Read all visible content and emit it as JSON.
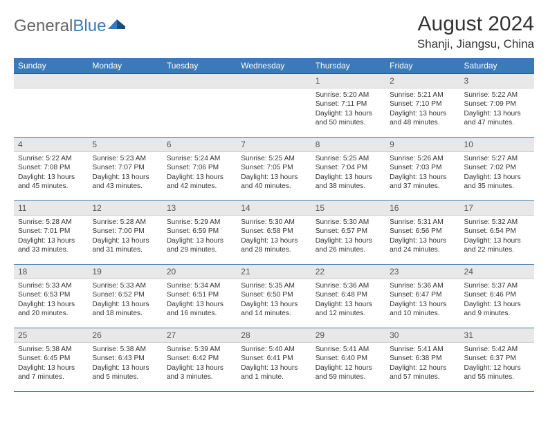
{
  "brand": {
    "part1": "General",
    "part2": "Blue"
  },
  "title": "August 2024",
  "location": "Shanji, Jiangsu, China",
  "colors": {
    "header_bg": "#3a7ab8",
    "header_text": "#ffffff",
    "daynum_bg": "#e8e8e8",
    "border": "#3a7ab8",
    "body_text": "#333333",
    "background": "#ffffff"
  },
  "typography": {
    "title_fontsize": 30,
    "location_fontsize": 17,
    "weekday_fontsize": 12,
    "daynum_fontsize": 12,
    "cell_fontsize": 10.2
  },
  "weekdays": [
    "Sunday",
    "Monday",
    "Tuesday",
    "Wednesday",
    "Thursday",
    "Friday",
    "Saturday"
  ],
  "weeks": [
    [
      null,
      null,
      null,
      null,
      {
        "d": "1",
        "sr": "5:20 AM",
        "ss": "7:11 PM",
        "dl": "13 hours and 50 minutes."
      },
      {
        "d": "2",
        "sr": "5:21 AM",
        "ss": "7:10 PM",
        "dl": "13 hours and 48 minutes."
      },
      {
        "d": "3",
        "sr": "5:22 AM",
        "ss": "7:09 PM",
        "dl": "13 hours and 47 minutes."
      }
    ],
    [
      {
        "d": "4",
        "sr": "5:22 AM",
        "ss": "7:08 PM",
        "dl": "13 hours and 45 minutes."
      },
      {
        "d": "5",
        "sr": "5:23 AM",
        "ss": "7:07 PM",
        "dl": "13 hours and 43 minutes."
      },
      {
        "d": "6",
        "sr": "5:24 AM",
        "ss": "7:06 PM",
        "dl": "13 hours and 42 minutes."
      },
      {
        "d": "7",
        "sr": "5:25 AM",
        "ss": "7:05 PM",
        "dl": "13 hours and 40 minutes."
      },
      {
        "d": "8",
        "sr": "5:25 AM",
        "ss": "7:04 PM",
        "dl": "13 hours and 38 minutes."
      },
      {
        "d": "9",
        "sr": "5:26 AM",
        "ss": "7:03 PM",
        "dl": "13 hours and 37 minutes."
      },
      {
        "d": "10",
        "sr": "5:27 AM",
        "ss": "7:02 PM",
        "dl": "13 hours and 35 minutes."
      }
    ],
    [
      {
        "d": "11",
        "sr": "5:28 AM",
        "ss": "7:01 PM",
        "dl": "13 hours and 33 minutes."
      },
      {
        "d": "12",
        "sr": "5:28 AM",
        "ss": "7:00 PM",
        "dl": "13 hours and 31 minutes."
      },
      {
        "d": "13",
        "sr": "5:29 AM",
        "ss": "6:59 PM",
        "dl": "13 hours and 29 minutes."
      },
      {
        "d": "14",
        "sr": "5:30 AM",
        "ss": "6:58 PM",
        "dl": "13 hours and 28 minutes."
      },
      {
        "d": "15",
        "sr": "5:30 AM",
        "ss": "6:57 PM",
        "dl": "13 hours and 26 minutes."
      },
      {
        "d": "16",
        "sr": "5:31 AM",
        "ss": "6:56 PM",
        "dl": "13 hours and 24 minutes."
      },
      {
        "d": "17",
        "sr": "5:32 AM",
        "ss": "6:54 PM",
        "dl": "13 hours and 22 minutes."
      }
    ],
    [
      {
        "d": "18",
        "sr": "5:33 AM",
        "ss": "6:53 PM",
        "dl": "13 hours and 20 minutes."
      },
      {
        "d": "19",
        "sr": "5:33 AM",
        "ss": "6:52 PM",
        "dl": "13 hours and 18 minutes."
      },
      {
        "d": "20",
        "sr": "5:34 AM",
        "ss": "6:51 PM",
        "dl": "13 hours and 16 minutes."
      },
      {
        "d": "21",
        "sr": "5:35 AM",
        "ss": "6:50 PM",
        "dl": "13 hours and 14 minutes."
      },
      {
        "d": "22",
        "sr": "5:36 AM",
        "ss": "6:48 PM",
        "dl": "13 hours and 12 minutes."
      },
      {
        "d": "23",
        "sr": "5:36 AM",
        "ss": "6:47 PM",
        "dl": "13 hours and 10 minutes."
      },
      {
        "d": "24",
        "sr": "5:37 AM",
        "ss": "6:46 PM",
        "dl": "13 hours and 9 minutes."
      }
    ],
    [
      {
        "d": "25",
        "sr": "5:38 AM",
        "ss": "6:45 PM",
        "dl": "13 hours and 7 minutes."
      },
      {
        "d": "26",
        "sr": "5:38 AM",
        "ss": "6:43 PM",
        "dl": "13 hours and 5 minutes."
      },
      {
        "d": "27",
        "sr": "5:39 AM",
        "ss": "6:42 PM",
        "dl": "13 hours and 3 minutes."
      },
      {
        "d": "28",
        "sr": "5:40 AM",
        "ss": "6:41 PM",
        "dl": "13 hours and 1 minute."
      },
      {
        "d": "29",
        "sr": "5:41 AM",
        "ss": "6:40 PM",
        "dl": "12 hours and 59 minutes."
      },
      {
        "d": "30",
        "sr": "5:41 AM",
        "ss": "6:38 PM",
        "dl": "12 hours and 57 minutes."
      },
      {
        "d": "31",
        "sr": "5:42 AM",
        "ss": "6:37 PM",
        "dl": "12 hours and 55 minutes."
      }
    ]
  ],
  "labels": {
    "sunrise": "Sunrise: ",
    "sunset": "Sunset: ",
    "daylight": "Daylight: "
  }
}
